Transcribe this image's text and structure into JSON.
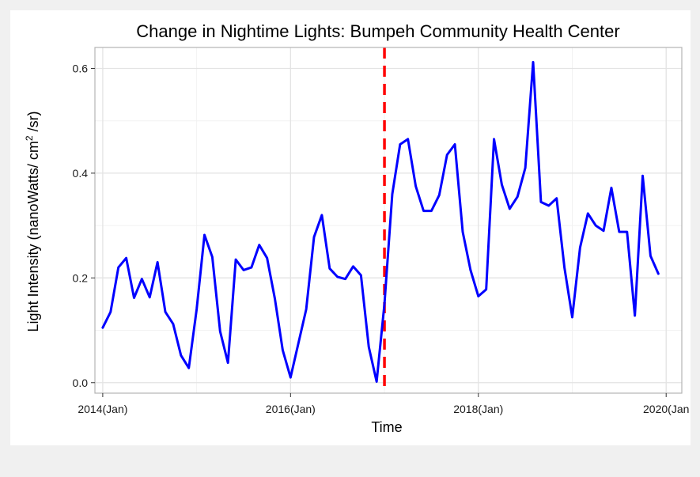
{
  "chart_data": {
    "type": "line",
    "title": "Change in Nightime Lights: Bumpeh Community Health Center",
    "xlabel": "Time",
    "ylabel_main": "Light Intensity  (nanoWatts/ cm",
    "ylabel_sup": "2",
    "ylabel_tail": " /sr)",
    "xlim": [
      "2014-01",
      "2020-01"
    ],
    "ylim": [
      -0.02,
      0.64
    ],
    "x_ticks": [
      {
        "x": "2014-01",
        "label": "2014(Jan)"
      },
      {
        "x": "2016-01",
        "label": "2016(Jan)"
      },
      {
        "x": "2018-01",
        "label": "2018(Jan)"
      },
      {
        "x": "2020-01",
        "label": "2020(Jan"
      }
    ],
    "y_ticks": [
      {
        "y": 0.0,
        "label": "0.0"
      },
      {
        "y": 0.2,
        "label": "0.2"
      },
      {
        "y": 0.4,
        "label": "0.4"
      },
      {
        "y": 0.6,
        "label": "0.6"
      }
    ],
    "grid": true,
    "vline": {
      "x": "2017-01",
      "color": "#ff0000",
      "style": "dashed"
    },
    "series": [
      {
        "color": "#0000ff",
        "x": [
          "2014-01",
          "2014-02",
          "2014-03",
          "2014-04",
          "2014-05",
          "2014-06",
          "2014-07",
          "2014-08",
          "2014-09",
          "2014-10",
          "2014-11",
          "2014-12",
          "2015-01",
          "2015-02",
          "2015-03",
          "2015-04",
          "2015-05",
          "2015-06",
          "2015-07",
          "2015-08",
          "2015-09",
          "2015-10",
          "2015-11",
          "2015-12",
          "2016-01",
          "2016-02",
          "2016-03",
          "2016-04",
          "2016-05",
          "2016-06",
          "2016-07",
          "2016-08",
          "2016-09",
          "2016-10",
          "2016-11",
          "2016-12",
          "2017-01",
          "2017-02",
          "2017-03",
          "2017-04",
          "2017-05",
          "2017-06",
          "2017-07",
          "2017-08",
          "2017-09",
          "2017-10",
          "2017-11",
          "2017-12",
          "2018-01",
          "2018-02",
          "2018-03",
          "2018-04",
          "2018-05",
          "2018-06",
          "2018-07",
          "2018-08",
          "2018-09",
          "2018-10",
          "2018-11",
          "2018-12",
          "2019-01",
          "2019-02",
          "2019-03",
          "2019-04",
          "2019-05",
          "2019-06",
          "2019-07",
          "2019-08",
          "2019-09",
          "2019-10",
          "2019-11",
          "2019-12"
        ],
        "values": [
          0.105,
          0.135,
          0.22,
          0.238,
          0.162,
          0.198,
          0.163,
          0.23,
          0.135,
          0.112,
          0.052,
          0.028,
          0.14,
          0.282,
          0.24,
          0.098,
          0.038,
          0.235,
          0.215,
          0.22,
          0.263,
          0.238,
          0.16,
          0.062,
          0.01,
          0.075,
          0.14,
          0.278,
          0.32,
          0.218,
          0.202,
          0.198,
          0.222,
          0.205,
          0.068,
          0.002,
          0.15,
          0.36,
          0.455,
          0.465,
          0.375,
          0.328,
          0.328,
          0.358,
          0.435,
          0.455,
          0.288,
          0.215,
          0.165,
          0.178,
          0.465,
          0.378,
          0.332,
          0.355,
          0.41,
          0.612,
          0.345,
          0.338,
          0.352,
          0.22,
          0.125,
          0.258,
          0.323,
          0.3,
          0.29,
          0.372,
          0.288,
          0.288,
          0.128,
          0.395,
          0.242,
          0.208
        ]
      }
    ]
  }
}
